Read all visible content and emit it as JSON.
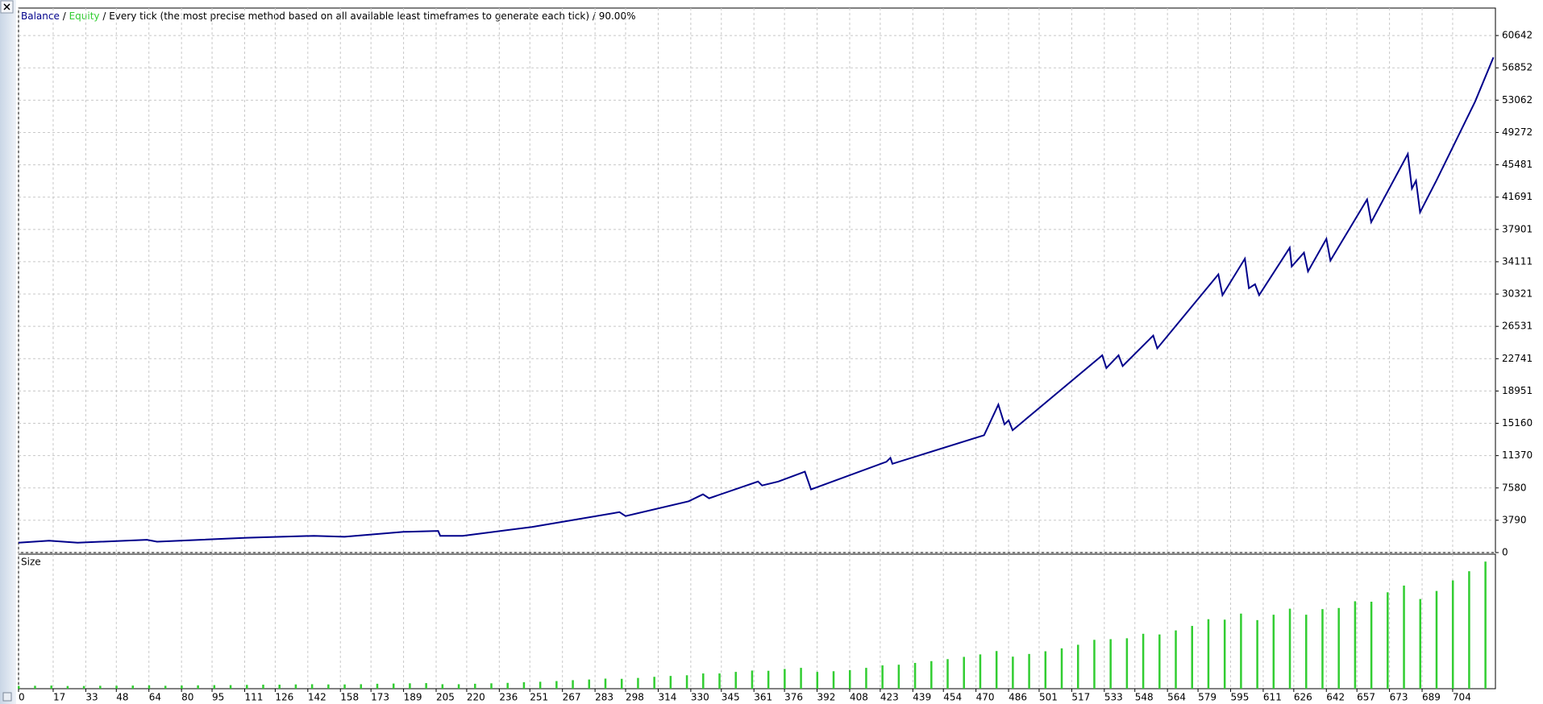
{
  "chart_data": [
    {
      "type": "line",
      "series": [
        {
          "name": "Balance",
          "color": "#00008b",
          "values": [
            1157,
            1388,
            1157,
            1504,
            1273,
            1736,
            1967,
            1851,
            2430,
            2545,
            1967,
            1967,
            3008,
            4744,
            4281,
            6016,
            6826,
            6364,
            8330,
            7868,
            8330,
            9487,
            7405,
            10644,
            11107,
            10413,
            13768,
            17355,
            15041,
            15504,
            14347,
            23140,
            21636,
            23140,
            21867,
            25454,
            23950,
            32627,
            30197,
            34478,
            31007,
            31470,
            30197,
            35752,
            33553,
            35173,
            32974,
            36793,
            34246,
            41420,
            38759,
            46743,
            42692,
            43618,
            39916,
            43618,
            52874,
            58080
          ]
        },
        {
          "name": "Equity",
          "color": "#32cd32"
        }
      ],
      "x": [
        0,
        15,
        29,
        63,
        68,
        112,
        145,
        160,
        189,
        206,
        207,
        218,
        252,
        295,
        298,
        329,
        336,
        339,
        363,
        365,
        373,
        386,
        389,
        426,
        428,
        429,
        474,
        481,
        484,
        486,
        488,
        532,
        534,
        540,
        542,
        557,
        559,
        589,
        591,
        602,
        604,
        607,
        609,
        624,
        625,
        631,
        633,
        642,
        644,
        662,
        664,
        682,
        684,
        686,
        688,
        696,
        715,
        724
      ],
      "separator": "/",
      "subtitle": "Every tick (the most precise method based on all available least timeframes to generate each tick)",
      "modeling_quality": "90.00%",
      "xlim": [
        0,
        725
      ],
      "ylim": [
        0,
        63864
      ],
      "yticks": [
        0,
        3790,
        7580,
        11370,
        15160,
        18951,
        22741,
        26531,
        30321,
        34111,
        37901,
        41691,
        45481,
        49272,
        53062,
        56852,
        60642
      ],
      "grid": true
    },
    {
      "type": "bar",
      "title": "Size",
      "color": "#32cd32",
      "x": [
        0,
        8,
        16,
        24,
        32,
        40,
        48,
        56,
        64,
        72,
        80,
        88,
        96,
        104,
        112,
        120,
        128,
        136,
        144,
        152,
        160,
        168,
        176,
        184,
        192,
        200,
        208,
        216,
        224,
        232,
        240,
        248,
        256,
        264,
        272,
        280,
        288,
        296,
        304,
        312,
        320,
        328,
        336,
        344,
        352,
        360,
        368,
        376,
        384,
        392,
        400,
        408,
        416,
        424,
        432,
        440,
        448,
        456,
        464,
        472,
        480,
        488,
        496,
        504,
        512,
        520,
        528,
        536,
        544,
        552,
        560,
        568,
        576,
        584,
        592,
        600,
        608,
        616,
        624,
        632,
        640,
        648,
        656,
        664,
        672,
        680,
        688,
        696,
        704,
        712,
        720
      ],
      "values": [
        0.12,
        0.13,
        0.14,
        0.12,
        0.12,
        0.13,
        0.13,
        0.14,
        0.15,
        0.13,
        0.14,
        0.15,
        0.16,
        0.16,
        0.17,
        0.18,
        0.18,
        0.19,
        0.2,
        0.19,
        0.19,
        0.2,
        0.22,
        0.23,
        0.24,
        0.25,
        0.2,
        0.2,
        0.22,
        0.24,
        0.26,
        0.29,
        0.31,
        0.34,
        0.38,
        0.41,
        0.45,
        0.44,
        0.48,
        0.53,
        0.57,
        0.6,
        0.68,
        0.68,
        0.75,
        0.81,
        0.8,
        0.88,
        0.93,
        0.75,
        0.78,
        0.83,
        0.93,
        1.04,
        1.07,
        1.15,
        1.23,
        1.32,
        1.42,
        1.53,
        1.68,
        1.43,
        1.55,
        1.67,
        1.8,
        1.96,
        2.18,
        2.21,
        2.25,
        2.45,
        2.42,
        2.6,
        2.8,
        3.1,
        3.08,
        3.35,
        3.06,
        3.3,
        3.57,
        3.3,
        3.55,
        3.6,
        3.9,
        3.88,
        4.3,
        4.6,
        4.0,
        4.36,
        4.83,
        5.24,
        5.67
      ],
      "xlim": [
        0,
        725
      ],
      "ylim": [
        0,
        6
      ],
      "xticks": [
        0,
        17,
        33,
        48,
        64,
        80,
        95,
        111,
        126,
        142,
        158,
        173,
        189,
        205,
        220,
        236,
        251,
        267,
        283,
        298,
        314,
        330,
        345,
        361,
        376,
        392,
        408,
        423,
        439,
        454,
        470,
        486,
        501,
        517,
        533,
        548,
        564,
        579,
        595,
        611,
        626,
        642,
        657,
        673,
        689,
        704
      ],
      "grid": true
    }
  ]
}
